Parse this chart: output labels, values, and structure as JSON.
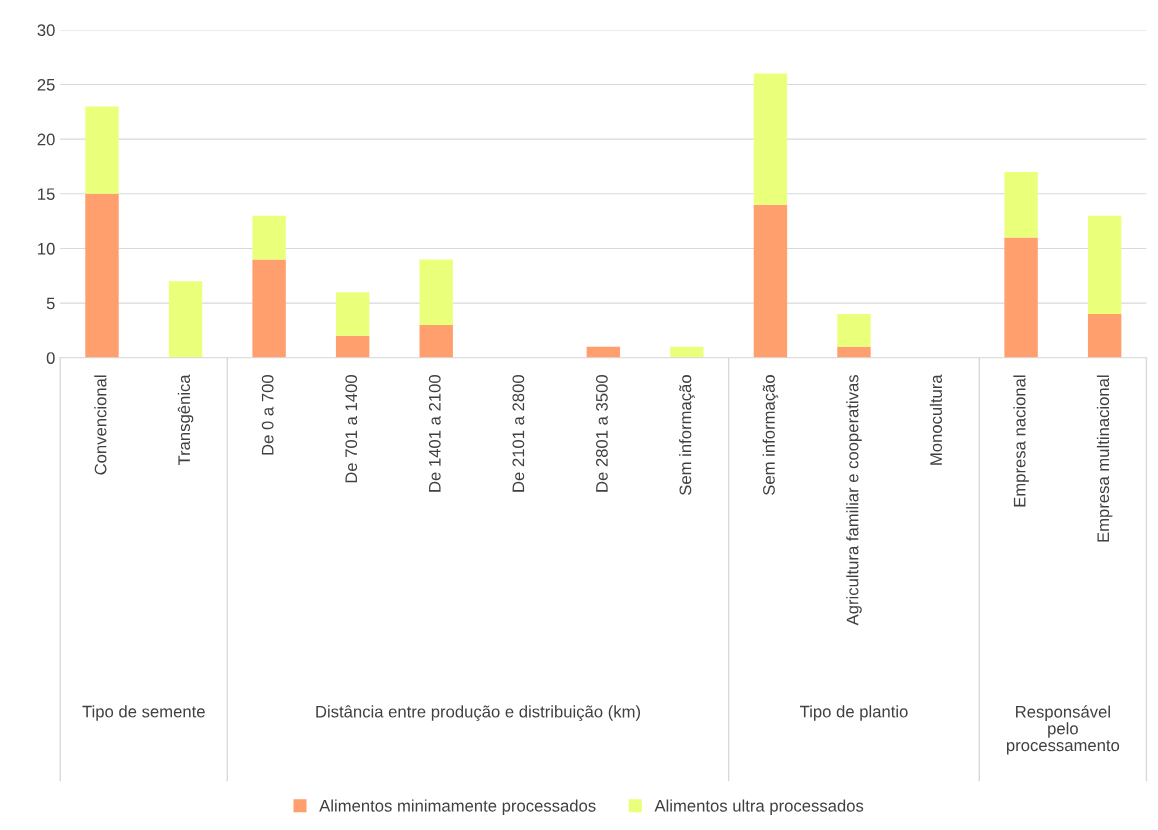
{
  "chart_data": {
    "type": "bar",
    "stacked": true,
    "categories": [
      "Convencional",
      "Transgênica",
      "De 0 a 700",
      "De 701 a 1400",
      "De 1401 a 2100",
      "De 2101 a 2800",
      "De 2801 a 3500",
      "Sem informação",
      "Sem informação",
      "Agricultura familiar e cooperativas",
      "Monocultura",
      "Empresa nacional",
      "Empresa multinacional"
    ],
    "series": [
      {
        "name": "Alimentos minimamente processados",
        "color": "#ff9f6e",
        "values": [
          15,
          0,
          9,
          2,
          3,
          0,
          1,
          0,
          14,
          1,
          0,
          11,
          4
        ]
      },
      {
        "name": "Alimentos ultra processados",
        "color": "#eaff7a",
        "values": [
          8,
          7,
          4,
          4,
          6,
          0,
          0,
          1,
          12,
          3,
          0,
          6,
          9
        ]
      }
    ],
    "ylim": [
      0,
      30
    ],
    "yticks": [
      0,
      5,
      10,
      15,
      20,
      25,
      30
    ],
    "grid": "y",
    "legend": "bottom",
    "annotations": [
      "Tipo de semente",
      "Distância entre produção e distribuição (km)",
      "Tipo de plantio",
      "Responsável\npelo\nprocessamento"
    ]
  }
}
